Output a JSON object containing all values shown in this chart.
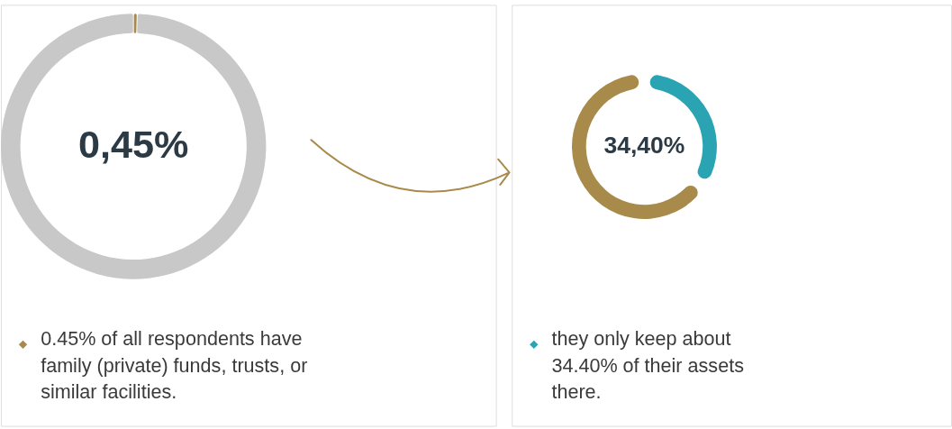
{
  "chart_data": [
    {
      "type": "donut",
      "categories": [
        null,
        null
      ],
      "values": [
        0.45,
        99.55
      ],
      "colors": [
        "#a88a4a",
        "#c8c8c8"
      ],
      "annotations": [
        "0,45%",
        "0.45% of all respondents have family (private) funds, trusts, or similar facilities."
      ]
    },
    {
      "type": "donut",
      "categories": [
        null,
        null
      ],
      "values": [
        34.4,
        65.6
      ],
      "colors": [
        "#2aa3b3",
        "#a88a4a"
      ],
      "annotations": [
        "34,40%",
        "they only keep about 34.40% of their assets there."
      ]
    }
  ]
}
